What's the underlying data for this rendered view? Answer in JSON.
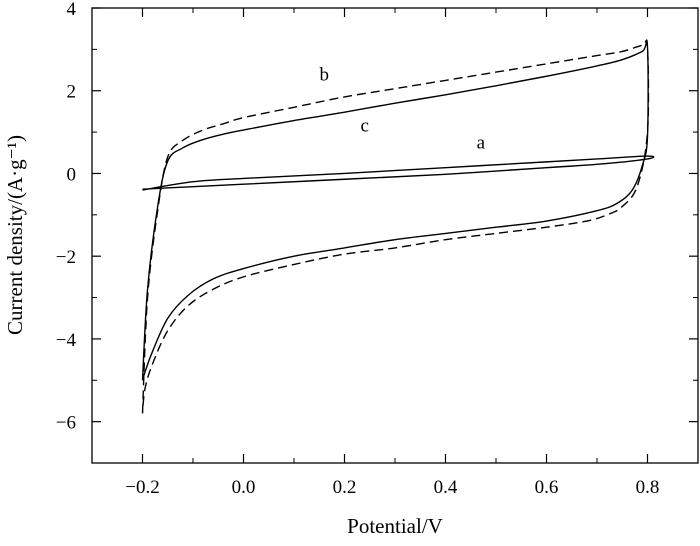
{
  "chart_data": {
    "type": "line",
    "title": "",
    "xlabel": "Potential/V",
    "ylabel": "Current density/(A·g⁻¹)",
    "xlim": [
      -0.3,
      0.9
    ],
    "ylim": [
      -7,
      4
    ],
    "xticks": [
      -0.2,
      0.0,
      0.2,
      0.4,
      0.6,
      0.8
    ],
    "xtick_labels": [
      "−0.2",
      "0.0",
      "0.2",
      "0.4",
      "0.6",
      "0.8"
    ],
    "yticks": [
      -6,
      -4,
      -2,
      0,
      2,
      4
    ],
    "ytick_labels": [
      "−6",
      "−4",
      "−2",
      "0",
      "2",
      "4"
    ],
    "grid": false,
    "legend": "none",
    "series": [
      {
        "label": "a",
        "style": "solid",
        "x": [
          -0.2,
          -0.1,
          0.0,
          0.2,
          0.4,
          0.6,
          0.7,
          0.8,
          0.8,
          0.7,
          0.6,
          0.4,
          0.2,
          0.0,
          -0.1,
          -0.2
        ],
        "y": [
          -0.4,
          -0.2,
          -0.12,
          0.0,
          0.14,
          0.28,
          0.35,
          0.42,
          0.35,
          0.22,
          0.14,
          -0.02,
          -0.14,
          -0.26,
          -0.32,
          -0.38
        ]
      },
      {
        "label": "b",
        "style": "dashed",
        "x": [
          -0.2,
          -0.19,
          -0.17,
          -0.15,
          -0.12,
          -0.08,
          -0.04,
          0.0,
          0.1,
          0.2,
          0.3,
          0.4,
          0.5,
          0.6,
          0.7,
          0.75,
          0.79,
          0.8,
          0.8,
          0.78,
          0.75,
          0.72,
          0.68,
          0.6,
          0.5,
          0.4,
          0.3,
          0.2,
          0.1,
          0.0,
          -0.06,
          -0.11,
          -0.15,
          -0.18,
          -0.195,
          -0.2
        ],
        "y": [
          -5.8,
          -3.0,
          -0.9,
          0.4,
          0.8,
          1.05,
          1.2,
          1.35,
          1.6,
          1.85,
          2.05,
          2.25,
          2.45,
          2.65,
          2.85,
          2.95,
          3.1,
          3.05,
          1.0,
          -0.3,
          -0.8,
          -1.0,
          -1.15,
          -1.3,
          -1.45,
          -1.6,
          -1.8,
          -1.95,
          -2.2,
          -2.5,
          -2.8,
          -3.2,
          -3.8,
          -4.6,
          -5.2,
          -5.8
        ]
      },
      {
        "label": "c",
        "style": "solid",
        "x": [
          -0.2,
          -0.19,
          -0.17,
          -0.15,
          -0.12,
          -0.08,
          -0.04,
          0.0,
          0.1,
          0.2,
          0.3,
          0.4,
          0.5,
          0.6,
          0.7,
          0.75,
          0.79,
          0.8,
          0.8,
          0.79,
          0.77,
          0.74,
          0.7,
          0.6,
          0.5,
          0.4,
          0.3,
          0.2,
          0.1,
          0.0,
          -0.06,
          -0.11,
          -0.15,
          -0.18,
          -0.195,
          -0.2
        ],
        "y": [
          -5.0,
          -2.8,
          -0.8,
          0.3,
          0.62,
          0.82,
          0.95,
          1.05,
          1.28,
          1.48,
          1.7,
          1.9,
          2.12,
          2.35,
          2.6,
          2.75,
          2.95,
          3.05,
          0.9,
          0.2,
          -0.4,
          -0.72,
          -0.9,
          -1.15,
          -1.3,
          -1.45,
          -1.6,
          -1.8,
          -2.0,
          -2.3,
          -2.55,
          -2.95,
          -3.5,
          -4.3,
          -4.8,
          -5.0
        ]
      }
    ],
    "annotations": [
      {
        "text": "a",
        "x": 0.47,
        "y": 0.6
      },
      {
        "text": "b",
        "x": 0.16,
        "y": 2.25
      },
      {
        "text": "c",
        "x": 0.24,
        "y": 1.02
      }
    ]
  }
}
